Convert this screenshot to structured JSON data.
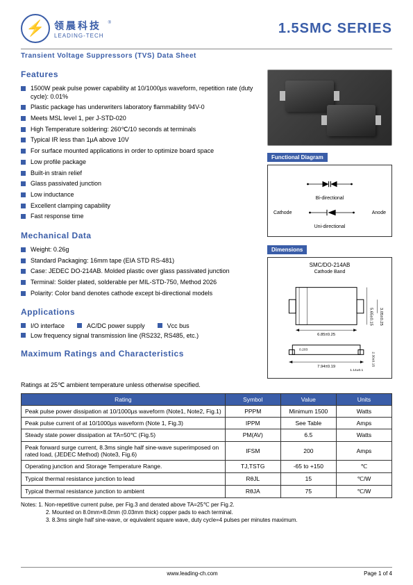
{
  "header": {
    "cn": "领晨科技",
    "en": "LEADING-TECH",
    "series": "1.5SMC  SERIES",
    "subtitle": "Transient Voltage Suppressors (TVS) Data Sheet"
  },
  "sections": {
    "features": "Features",
    "mechanical": "Mechanical Data",
    "applications": "Applications",
    "maxratings": "Maximum Ratings and Characteristics",
    "funcdiag": "Functional  Diagram",
    "dimensions": "Dimensions"
  },
  "features": [
    "1500W peak pulse power capability at 10/1000µs waveform, repetition rate (duty cycle): 0.01%",
    "Plastic package has underwriters laboratory flammability 94V-0",
    "Meets MSL level 1, per J-STD-020",
    "High Temperature soldering: 260℃/10 seconds at terminals",
    "Typical IR less than 1µA above 10V",
    "For surface mounted applications in order to optimize board space",
    "Low profile package",
    "Built-in strain relief",
    "Glass passivated junction",
    "Low inductance",
    "Excellent clamping capability",
    "Fast response time"
  ],
  "mechanical": [
    "Weight: 0.26g",
    "Standard Packaging: 16mm tape (EIA STD RS-481)",
    "Case: JEDEC DO-214AB. Molded plastic over glass passivated junction",
    "Terminal: Solder plated, solderable per MIL-STD-750, Method 2026",
    "Polarity: Color band denotes cathode except bi-directional models"
  ],
  "applications": {
    "row1": [
      "I/O interface",
      "AC/DC power supply",
      "Vcc bus"
    ],
    "row2": [
      "Low frequency signal transmission line (RS232, RS485, etc.)"
    ]
  },
  "diagram": {
    "bidir": "Bi-directional",
    "unidir": "Uni-directional",
    "cathode": "Cathode",
    "anode": "Anode"
  },
  "dim": {
    "title": "SMC/DO-214AB",
    "sub": "Cathode Band",
    "w": "6.85±0.25",
    "h1": "5.65±0.15",
    "h2": "3.05±0.25",
    "t": "0.203",
    "l1": "7.94±0.19",
    "l2": "1.14±0.1",
    "l3": "2.30±0.15"
  },
  "ratings_note": "Ratings at 25℃  ambient temperature unless otherwise specified.",
  "table": {
    "headers": [
      "Rating",
      "Symbol",
      "Value",
      "Units"
    ],
    "rows": [
      [
        "Peak pulse power dissipation at 10/1000µs waveform (Note1, Note2, Fig.1)",
        "PPPM",
        "Minimum 1500",
        "Watts"
      ],
      [
        "Peak pulse current of at 10/1000µs waveform (Note 1, Fig.3)",
        "IPPM",
        "See Table",
        "Amps"
      ],
      [
        "Steady state power dissipation at TA=50℃ (Fig.5)",
        "PM(AV)",
        "6.5",
        "Watts"
      ],
      [
        "Peak forward surge current, 8.3ms single half sine-wave superimposed on rated load, (JEDEC Method) (Note3, Fig.6)",
        "IFSM",
        "200",
        "Amps"
      ],
      [
        "Operating junction and Storage Temperature Range.",
        "TJ,TSTG",
        "-65 to +150",
        "℃"
      ],
      [
        "Typical thermal resistance junction to lead",
        "RθJL",
        "15",
        "℃/W"
      ],
      [
        "Typical thermal resistance junction to ambient",
        "RθJA",
        "75",
        "℃/W"
      ]
    ]
  },
  "notes": [
    "Notes: 1. Non-repetitive current pulse, per Fig.3 and derated above TA=25℃ per Fig.2.",
    "2. Mounted on 8.0mm×8.0mm (0.03mm thick) copper pads to each terminal.",
    "3. 8.3ms single half sine-wave, or equivalent square wave, duty cycle=4 pulses per minutes maximum."
  ],
  "footer": {
    "url": "www.leading-ch.com",
    "page": "Page 1 of 4"
  }
}
